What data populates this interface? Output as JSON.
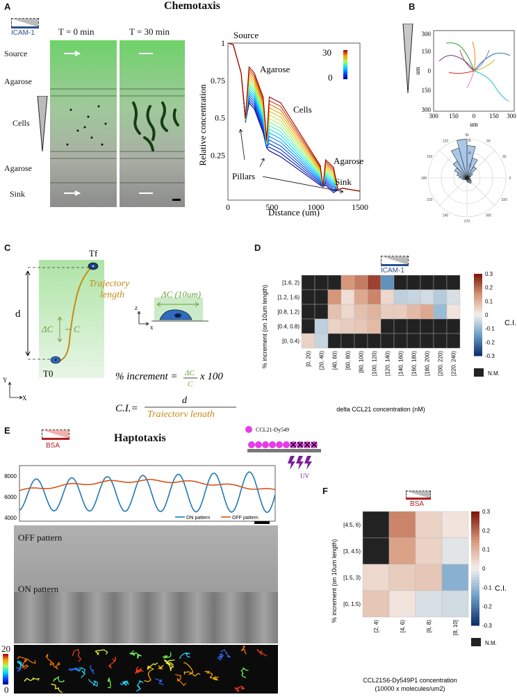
{
  "panels": {
    "A": "A",
    "B": "B",
    "C": "C",
    "D": "D",
    "E": "E",
    "F": "F"
  },
  "panelA": {
    "title": "Chemotaxis",
    "substrate": "ICAM-1",
    "t0": "T = 0 min",
    "t30": "T = 30 min",
    "rows": [
      "Source",
      "Agarose",
      "Cells",
      "Agarose",
      "Sink"
    ],
    "plot": {
      "ylabel": "Relative concentration",
      "xlabel": "Distance (um)",
      "xticks": [
        "0",
        "500",
        "1000",
        "1500"
      ],
      "yticks": [
        "1",
        "0.75",
        "0.5",
        "0.25"
      ],
      "colorbar": {
        "max": "30",
        "min": "0"
      },
      "annotations": {
        "source": "Source",
        "agarose1": "Agarose",
        "cells": "Cells",
        "agarose2": "Agarose",
        "sink": "Sink",
        "pillars": "Pillars"
      }
    }
  },
  "panelB": {
    "ylabel": "um",
    "xlabel": "um",
    "yticks": [
      "300",
      "150",
      "0",
      "150",
      "300"
    ],
    "xticks": [
      "300",
      "150",
      "0",
      "150",
      "300"
    ],
    "polar_labels": [
      "90",
      "60",
      "30",
      "0",
      "330",
      "300",
      "270",
      "240",
      "210",
      "180",
      "150",
      "120"
    ],
    "polar_rings": [
      "6",
      "4",
      "2"
    ]
  },
  "panelC": {
    "tf": "Tf",
    "t0": "T0",
    "d": "d",
    "dc": "ΔC",
    "c": "C",
    "trajectory": [
      "Trajectory",
      "length"
    ],
    "dc10": "ΔC (10um)",
    "axis_z": "z",
    "axis_x": "x",
    "axis_y": "Y",
    "axis_x2": "X",
    "increment_label": "% increment =",
    "frac_num": "ΔC",
    "frac_den": "C",
    "times": "x 100",
    "ci_label": "C.I.=",
    "ci_num": "d",
    "ci_den": "Trajectory length"
  },
  "panelD": {
    "substrate": "ICAM-1",
    "ylabel": "% increment (on 10um length)",
    "xlabel": "delta CCL21 concentration (nM)",
    "rows": [
      "[1.6, 2)",
      "[1.2, 1.6)",
      "[0.8, 1.2)",
      "[0.4, 0.8)",
      "[0, 0.4)"
    ],
    "cols": [
      "[0, 20)",
      "[20, 40)",
      "[40, 60)",
      "[60, 80)",
      "[80, 100)",
      "[100, 120)",
      "[120, 140)",
      "[140, 160)",
      "[160, 180)",
      "[180, 200)",
      "[200, 220)",
      "[220, 240)"
    ],
    "values": [
      [
        null,
        null,
        null,
        0.15,
        0.18,
        0.25,
        -0.17,
        null,
        null,
        null,
        null,
        null
      ],
      [
        null,
        null,
        0.15,
        0.03,
        0.12,
        0.17,
        0.04,
        -0.06,
        -0.05,
        -0.04,
        -0.07,
        -0.03
      ],
      [
        null,
        null,
        0.08,
        0.04,
        0.08,
        0.1,
        0.06,
        0.06,
        0.09,
        0.12,
        -0.1,
        0.02
      ],
      [
        null,
        -0.06,
        0.05,
        0.06,
        0.07,
        0.09,
        null,
        null,
        null,
        null,
        null,
        null
      ],
      [
        0.05,
        -0.05,
        null,
        null,
        null,
        null,
        null,
        null,
        null,
        null,
        null,
        null
      ]
    ],
    "colorbar_ticks": [
      "0.3",
      "0.2",
      "0.1",
      "0",
      "-0.1",
      "-0.2",
      "-0.3"
    ],
    "colorbar_label": "C.I.",
    "nm_label": "N.M."
  },
  "panelE": {
    "title": "Haptotaxis",
    "substrate": "BSA",
    "legend_dot": "CCL21-Dy549",
    "uv": "UV",
    "yticks": [
      "8000",
      "6000",
      "4000"
    ],
    "series": [
      {
        "name": "ON pattern",
        "color": "#1f77b4"
      },
      {
        "name": "OFF pattern",
        "color": "#d95319"
      }
    ],
    "off_label": "OFF pattern",
    "on_label": "ON pattern",
    "colorbar": {
      "max": "20",
      "min": "0"
    }
  },
  "panelF": {
    "substrate": "BSA",
    "ylabel": "% increment (on 10um length)",
    "xlabel": [
      "CCL21S6-Dy549P1 concentration",
      "(10000 x molecules/um2)"
    ],
    "rows": [
      "[4.5, 6)",
      "[3, 4.5)",
      "[1.5, 3)",
      "[0, 1.5)"
    ],
    "cols": [
      "[2, 4)",
      "[4, 6)",
      "[6, 8)",
      "[8, 10]"
    ],
    "values": [
      [
        null,
        0.17,
        0.05,
        0.02
      ],
      [
        null,
        0.13,
        0.05,
        -0.02
      ],
      [
        0.04,
        0.06,
        0.07,
        -0.12
      ],
      [
        0.07,
        0.02,
        -0.03,
        -0.04
      ]
    ],
    "colorbar_ticks": [
      "0.3",
      "0.2",
      "0.1",
      "0",
      "-0.1",
      "-0.2",
      "-0.3"
    ],
    "colorbar_label": "C.I.",
    "nm_label": "N.M."
  }
}
